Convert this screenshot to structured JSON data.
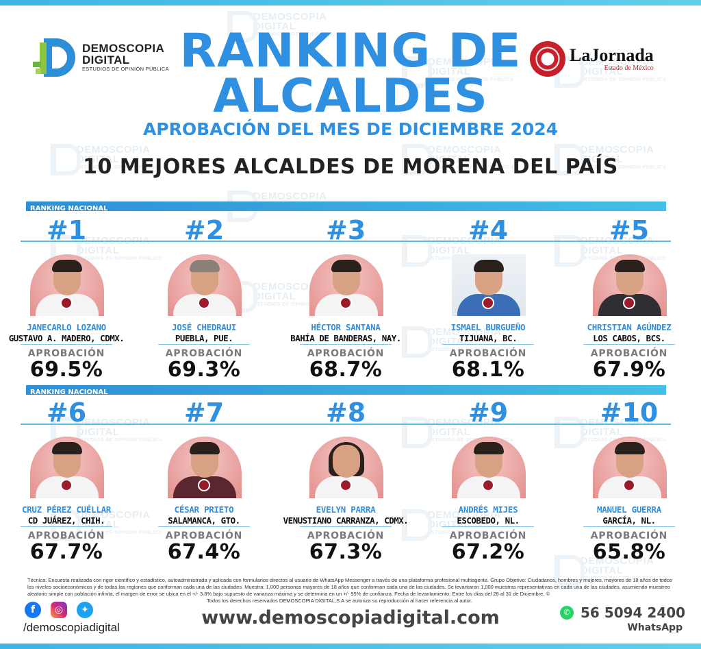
{
  "header": {
    "demoscopia": {
      "line1": "DEMOSCOPIA",
      "line2": "DIGITAL",
      "tagline": "ESTUDIOS DE OPINIÓN PÚBLICA"
    },
    "jornada": {
      "name": "LaJornada",
      "region": "Estado de México"
    },
    "title_line1": "RANKING DE",
    "title_line2": "ALCALDES",
    "subtitle": "APROBACIÓN DEL MES DE DICIEMBRE 2024",
    "heading": "10 MEJORES ALCALDES DE MORENA DEL PAÍS"
  },
  "watermark": {
    "line1": "DEMOSCOPIA",
    "line2": "DIGITAL",
    "line3": "ESTUDIOS DE OPINIÓN PÚBLICA"
  },
  "section_label": "RANKING NACIONAL",
  "approval_label": "APROBACIÓN",
  "mayors": [
    {
      "rank": "#1",
      "name": "JANECARLO LOZANO",
      "place": "GUSTAVO A. MADERO, CDMX.",
      "approval": "69.5%",
      "outfit": "light"
    },
    {
      "rank": "#2",
      "name": "JOSÉ CHEDRAUI",
      "place": "PUEBLA, PUE.",
      "approval": "69.3%",
      "outfit": "light"
    },
    {
      "rank": "#3",
      "name": "HÉCTOR SANTANA",
      "place": "BAHÍA DE BANDERAS, NAY.",
      "approval": "68.7%",
      "outfit": "light"
    },
    {
      "rank": "#4",
      "name": "ISMAEL BURGUEÑO",
      "place": "TIJUANA, BC.",
      "approval": "68.1%",
      "outfit": "blue"
    },
    {
      "rank": "#5",
      "name": "CHRISTIAN AGÚNDEZ",
      "place": "LOS CABOS, BCS.",
      "approval": "67.9%",
      "outfit": "dark"
    },
    {
      "rank": "#6",
      "name": "CRUZ PÉREZ CUÉLLAR",
      "place": "CD JUÁREZ, CHIH.",
      "approval": "67.7%",
      "outfit": "light"
    },
    {
      "rank": "#7",
      "name": "CÉSAR PRIETO",
      "place": "SALAMANCA, GTO.",
      "approval": "67.4%",
      "outfit": "maroon"
    },
    {
      "rank": "#8",
      "name": "EVELYN PARRA",
      "place": "VENUSTIANO CARRANZA, CDMX.",
      "approval": "67.3%",
      "outfit": "light"
    },
    {
      "rank": "#9",
      "name": "ANDRÉS MIJES",
      "place": "ESCOBEDO, NL.",
      "approval": "67.2%",
      "outfit": "light"
    },
    {
      "rank": "#10",
      "name": "MANUEL GUERRA",
      "place": "GARCÍA, NL.",
      "approval": "65.8%",
      "outfit": "light"
    }
  ],
  "footer": {
    "fine_print": "Técnica: Encuesta realizada con rigor científico y estadístico, autoadministrada y aplicada con formularios directos al usuario de WhatsApp Messenger a través de una plataforma profesional multiagente. Grupo Objetivo: Ciudadanos, hombres y mujeres, mayores de 18 años de todos los niveles socioeconómicos y de todas las regiones que conforman cada una de las ciudades. Muestra: 1,000 personas mayores de 18 años que conforman cada una de las ciudades. Se levantaron 1,000 muestras representativas en cada una de las ciudades, asumiendo muestreo aleatorio simple con población infinita, el margen de error se ubica en el +/- 3.8% bajo supuesto de varianza máxima y se determina en un +/- 95% de confianza. Fecha de levantamiento: Entre los días del 28 al 31 de Diciembre. ©",
    "rights": "Todos los derechos reservados DEMOSCOPIA DIGITAL,S.A se autoriza su reproducción al hacer referencia al autor.",
    "handle": "/demoscopiadigital",
    "website": "www.demoscopiadigital.com",
    "phone": "56 5094 2400",
    "whatsapp_label": "WhatsApp"
  }
}
